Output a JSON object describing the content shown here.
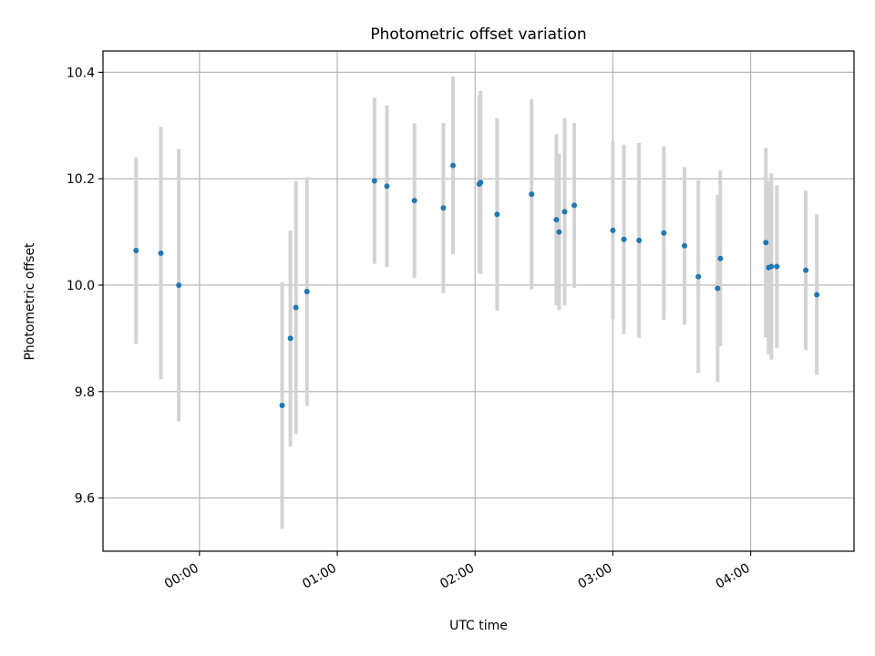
{
  "chart_data": {
    "type": "scatter",
    "title": "Photometric offset variation",
    "xlabel": "UTC time",
    "ylabel": "Photometric offset",
    "x_unit": "UTC HH:MM (hours after 00:00)",
    "xlim": [
      -0.7,
      4.75
    ],
    "ylim": [
      9.5,
      10.44
    ],
    "x_ticks": [
      0,
      1,
      2,
      3,
      4
    ],
    "x_tick_labels": [
      "00:00",
      "01:00",
      "02:00",
      "03:00",
      "04:00"
    ],
    "y_ticks": [
      9.6,
      9.8,
      10.0,
      10.2,
      10.4
    ],
    "y_tick_labels": [
      "9.6",
      "9.8",
      "10.0",
      "10.2",
      "10.4"
    ],
    "grid": true,
    "legend": "none",
    "colors": {
      "marker": "#1f77b4",
      "errorbar": "#d3d3d3",
      "grid": "#b0b0b0"
    },
    "series": [
      {
        "points": [
          {
            "x": -0.46,
            "y": 10.065,
            "err": 0.175
          },
          {
            "x": -0.28,
            "y": 10.06,
            "err": 0.237
          },
          {
            "x": -0.15,
            "y": 10.0,
            "err": 0.256
          },
          {
            "x": 0.6,
            "y": 9.774,
            "err": 0.232
          },
          {
            "x": 0.66,
            "y": 9.9,
            "err": 0.203
          },
          {
            "x": 0.7,
            "y": 9.958,
            "err": 0.238
          },
          {
            "x": 0.78,
            "y": 9.988,
            "err": 0.215
          },
          {
            "x": 1.27,
            "y": 10.196,
            "err": 0.156
          },
          {
            "x": 1.36,
            "y": 10.186,
            "err": 0.152
          },
          {
            "x": 1.56,
            "y": 10.159,
            "err": 0.145
          },
          {
            "x": 1.77,
            "y": 10.145,
            "err": 0.16
          },
          {
            "x": 1.84,
            "y": 10.225,
            "err": 0.167
          },
          {
            "x": 2.03,
            "y": 10.19,
            "err": 0.167
          },
          {
            "x": 2.04,
            "y": 10.193,
            "err": 0.172
          },
          {
            "x": 2.16,
            "y": 10.133,
            "err": 0.181
          },
          {
            "x": 2.41,
            "y": 10.171,
            "err": 0.179
          },
          {
            "x": 2.59,
            "y": 10.123,
            "err": 0.161
          },
          {
            "x": 2.61,
            "y": 10.1,
            "err": 0.147
          },
          {
            "x": 2.65,
            "y": 10.138,
            "err": 0.176
          },
          {
            "x": 2.72,
            "y": 10.15,
            "err": 0.155
          },
          {
            "x": 3.0,
            "y": 10.103,
            "err": 0.167
          },
          {
            "x": 3.08,
            "y": 10.086,
            "err": 0.178
          },
          {
            "x": 3.19,
            "y": 10.084,
            "err": 0.183
          },
          {
            "x": 3.37,
            "y": 10.098,
            "err": 0.163
          },
          {
            "x": 3.52,
            "y": 10.074,
            "err": 0.148
          },
          {
            "x": 3.62,
            "y": 10.016,
            "err": 0.181
          },
          {
            "x": 3.76,
            "y": 9.994,
            "err": 0.176
          },
          {
            "x": 3.78,
            "y": 10.05,
            "err": 0.165
          },
          {
            "x": 4.11,
            "y": 10.08,
            "err": 0.178
          },
          {
            "x": 4.13,
            "y": 10.033,
            "err": 0.163
          },
          {
            "x": 4.15,
            "y": 10.035,
            "err": 0.175
          },
          {
            "x": 4.19,
            "y": 10.035,
            "err": 0.153
          },
          {
            "x": 4.4,
            "y": 10.028,
            "err": 0.15
          },
          {
            "x": 4.48,
            "y": 9.982,
            "err": 0.151
          }
        ]
      }
    ]
  }
}
